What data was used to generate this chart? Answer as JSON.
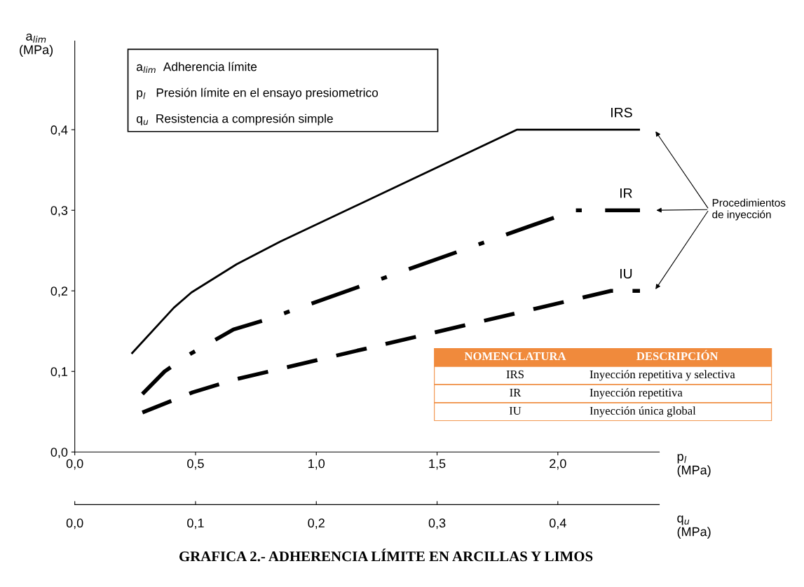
{
  "chart_data": {
    "type": "line",
    "title": "GRAFICA 2.- ADHERENCIA LÍMITE EN ARCILLAS Y LIMOS",
    "xlabel": "p$_{l}$\n(MPa)",
    "ylabel": "a$_{lim}$\n(MPa)",
    "x2label": "q$_{u}$\n(MPa)",
    "xlim": [
      0,
      2.42
    ],
    "ylim": [
      0,
      0.51
    ],
    "x2lim": [
      0,
      0.484
    ],
    "xticks": [
      {
        "value": 0,
        "label": "0,0"
      },
      {
        "value": 0.5,
        "label": "0,5"
      },
      {
        "value": 1.0,
        "label": "1,0"
      },
      {
        "value": 1.5,
        "label": "1,5"
      },
      {
        "value": 2.0,
        "label": "2,0"
      }
    ],
    "yticks": [
      {
        "value": 0,
        "label": "0,0"
      },
      {
        "value": 0.1,
        "label": "0,1"
      },
      {
        "value": 0.2,
        "label": "0,2"
      },
      {
        "value": 0.3,
        "label": "0,3"
      },
      {
        "value": 0.4,
        "label": "0,4"
      }
    ],
    "x2ticks": [
      {
        "value": 0,
        "label": "0,0"
      },
      {
        "value": 0.1,
        "label": "0,1"
      },
      {
        "value": 0.2,
        "label": "0,2"
      },
      {
        "value": 0.3,
        "label": "0,3"
      },
      {
        "value": 0.4,
        "label": "0,4"
      }
    ],
    "grid": false,
    "legend": false,
    "series": [
      {
        "name": "IRS",
        "color": "#000000",
        "line_style": "solid",
        "x": [
          0.235,
          0.41,
          0.483,
          0.67,
          0.85,
          1.83,
          2.34
        ],
        "values": [
          0.122,
          0.179,
          0.198,
          0.233,
          0.261,
          0.4,
          0.4
        ]
      },
      {
        "name": "IR",
        "color": "#000000",
        "line_style": "dashdot",
        "x": [
          0.28,
          0.372,
          0.48,
          0.657,
          0.79,
          2.07,
          2.34
        ],
        "values": [
          0.072,
          0.1,
          0.122,
          0.152,
          0.164,
          0.3,
          0.3
        ]
      },
      {
        "name": "IU",
        "color": "#000000",
        "line_style": "dashed",
        "x": [
          0.28,
          0.488,
          0.663,
          2.22,
          2.34
        ],
        "values": [
          0.049,
          0.074,
          0.09,
          0.2,
          0.2
        ]
      }
    ],
    "annotations": [
      "a$_{lim}$  Adherencia límite",
      "p$_{l}$   Presión límite en el ensayo presiometrico",
      "q$_{u}$  Resistencia a compresión simple",
      "Procedimientos\nde inyección",
      "NOMENCLATURA",
      "DESCRIPCIÓN",
      "IRS",
      "Inyección repetitiva y selectiva",
      "IR",
      "Inyección repetitiva",
      "IU",
      "Inyección única global"
    ]
  }
}
